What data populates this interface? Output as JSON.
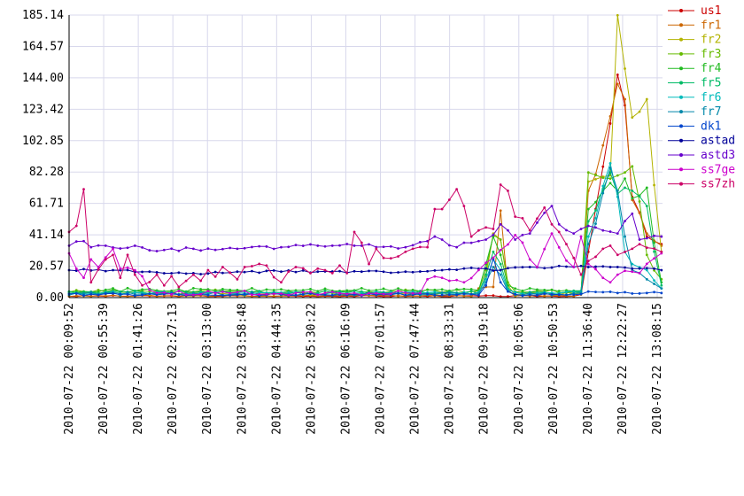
{
  "chart_data": {
    "type": "line",
    "title": "",
    "xlabel": "",
    "ylabel": "",
    "ylim": [
      0.0,
      185.14
    ],
    "yticks": [
      "0.00",
      "20.57",
      "41.14",
      "61.71",
      "82.28",
      "102.85",
      "123.42",
      "144.00",
      "164.57",
      "185.14"
    ],
    "xticks": [
      "2010-07-22 00:09:52",
      "2010-07-22 00:55:39",
      "2010-07-22 01:41:26",
      "2010-07-22 02:27:13",
      "2010-07-22 03:13:00",
      "2010-07-22 03:58:48",
      "2010-07-22 04:44:35",
      "2010-07-22 05:30:22",
      "2010-07-22 06:16:09",
      "2010-07-22 07:01:57",
      "2010-07-22 07:47:44",
      "2010-07-22 08:33:31",
      "2010-07-22 09:19:18",
      "2010-07-22 10:05:06",
      "2010-07-22 10:50:53",
      "2010-07-22 11:36:40",
      "2010-07-22 12:22:27",
      "2010-07-22 13:08:15"
    ],
    "grid": true,
    "legend_position": "right",
    "series": [
      {
        "name": "us1",
        "color": "#cc0000",
        "baseline": 1,
        "noise": 0.4,
        "spikes": [
          [
            24.5,
            2
          ],
          [
            26.3,
            146
          ],
          [
            26.7,
            126
          ],
          [
            27.1,
            66
          ],
          [
            27.6,
            40
          ],
          [
            28.3,
            35
          ]
        ]
      },
      {
        "name": "fr1",
        "color": "#cc6600",
        "baseline": 1.2,
        "noise": 0.4,
        "spikes": [
          [
            19.5,
            6
          ],
          [
            20.2,
            7
          ],
          [
            20.7,
            57
          ],
          [
            21.1,
            5
          ],
          [
            24.5,
            3
          ],
          [
            25.0,
            70
          ],
          [
            26.3,
            140
          ],
          [
            26.7,
            130
          ],
          [
            27.1,
            64
          ],
          [
            27.6,
            42
          ],
          [
            28.3,
            34
          ]
        ]
      },
      {
        "name": "fr2",
        "color": "#b3b300",
        "baseline": 2.5,
        "noise": 1,
        "spikes": [
          [
            20.0,
            14
          ],
          [
            20.4,
            42
          ],
          [
            20.7,
            38
          ],
          [
            21.1,
            8
          ],
          [
            25.0,
            76
          ],
          [
            25.8,
            80
          ],
          [
            26.3,
            185
          ],
          [
            26.7,
            150
          ],
          [
            27.1,
            118
          ],
          [
            27.6,
            130
          ],
          [
            28.3,
            30
          ]
        ]
      },
      {
        "name": "fr3",
        "color": "#66bb00",
        "baseline": 4,
        "noise": 1.2,
        "spikes": [
          [
            20.0,
            18
          ],
          [
            20.4,
            41
          ],
          [
            20.7,
            38
          ],
          [
            21.1,
            10
          ],
          [
            25.0,
            82
          ],
          [
            25.8,
            78
          ],
          [
            26.3,
            80
          ],
          [
            26.7,
            82
          ],
          [
            27.1,
            86
          ],
          [
            27.6,
            28
          ],
          [
            28.3,
            12
          ]
        ]
      },
      {
        "name": "fr4",
        "color": "#22bb22",
        "baseline": 5,
        "noise": 1.2,
        "spikes": [
          [
            20.0,
            22
          ],
          [
            20.4,
            40
          ],
          [
            20.7,
            28
          ],
          [
            21.1,
            8
          ],
          [
            25.0,
            58
          ],
          [
            25.8,
            75
          ],
          [
            26.3,
            70
          ],
          [
            26.7,
            78
          ],
          [
            27.1,
            65
          ],
          [
            27.6,
            72
          ],
          [
            28.3,
            10
          ]
        ]
      },
      {
        "name": "fr5",
        "color": "#00bb66",
        "baseline": 3.5,
        "noise": 1,
        "spikes": [
          [
            20.0,
            15
          ],
          [
            20.4,
            30
          ],
          [
            20.7,
            22
          ],
          [
            21.1,
            6
          ],
          [
            25.0,
            50
          ],
          [
            25.8,
            82
          ],
          [
            26.3,
            68
          ],
          [
            26.7,
            72
          ],
          [
            27.1,
            70
          ],
          [
            27.6,
            60
          ],
          [
            28.3,
            8
          ]
        ]
      },
      {
        "name": "fr6",
        "color": "#00bbbb",
        "baseline": 3,
        "noise": 1,
        "spikes": [
          [
            20.0,
            12
          ],
          [
            20.4,
            25
          ],
          [
            20.7,
            18
          ],
          [
            21.1,
            5
          ],
          [
            25.0,
            40
          ],
          [
            25.8,
            88
          ],
          [
            26.3,
            66
          ],
          [
            26.7,
            30
          ],
          [
            27.1,
            22
          ],
          [
            27.6,
            18
          ],
          [
            28.3,
            6
          ]
        ]
      },
      {
        "name": "fr7",
        "color": "#0088aa",
        "baseline": 2.5,
        "noise": 1,
        "spikes": [
          [
            20.0,
            10
          ],
          [
            20.4,
            20
          ],
          [
            20.7,
            15
          ],
          [
            21.1,
            4
          ],
          [
            25.0,
            35
          ],
          [
            25.8,
            85
          ],
          [
            26.3,
            70
          ],
          [
            26.7,
            40
          ],
          [
            27.1,
            18
          ],
          [
            27.6,
            12
          ],
          [
            28.3,
            6
          ]
        ]
      },
      {
        "name": "dk1",
        "color": "#0044cc",
        "baseline": 2,
        "noise": 0.8,
        "spikes": [
          [
            20.0,
            8
          ],
          [
            20.4,
            26
          ],
          [
            20.7,
            10
          ],
          [
            21.1,
            4
          ],
          [
            25.0,
            4
          ],
          [
            26.3,
            3
          ],
          [
            27.6,
            3
          ],
          [
            28.3,
            3
          ]
        ]
      },
      {
        "name": "astad",
        "color": "#000099",
        "baseline": 18,
        "noise": 0.8,
        "spikes": [
          [
            0.0,
            18
          ],
          [
            2.0,
            18
          ],
          [
            4.0,
            17
          ],
          [
            6.0,
            16
          ],
          [
            8.0,
            17
          ],
          [
            10.0,
            17
          ],
          [
            12.0,
            17
          ],
          [
            14.0,
            17
          ],
          [
            16.0,
            17
          ],
          [
            18.0,
            18
          ],
          [
            19.5,
            19
          ],
          [
            20.5,
            18
          ],
          [
            22.0,
            20
          ],
          [
            24.0,
            20
          ],
          [
            25.0,
            20
          ],
          [
            26.0,
            20
          ],
          [
            27.0,
            19
          ],
          [
            28.3,
            18
          ]
        ]
      },
      {
        "name": "astd3",
        "color": "#6600cc",
        "baseline": 33,
        "noise": 1.2,
        "spikes": [
          [
            0.0,
            34
          ],
          [
            0.6,
            37
          ],
          [
            1.0,
            33
          ],
          [
            4.0,
            31
          ],
          [
            6.0,
            32
          ],
          [
            8.0,
            32
          ],
          [
            10.0,
            33
          ],
          [
            12.0,
            34
          ],
          [
            14.0,
            34
          ],
          [
            16.0,
            33
          ],
          [
            17.6,
            40
          ],
          [
            18.5,
            33
          ],
          [
            19.0,
            36
          ],
          [
            20.0,
            38
          ],
          [
            20.7,
            48
          ],
          [
            21.4,
            38
          ],
          [
            22.0,
            42
          ],
          [
            23.0,
            60
          ],
          [
            23.5,
            48
          ],
          [
            24.0,
            42
          ],
          [
            24.5,
            45
          ],
          [
            25.0,
            47
          ],
          [
            25.6,
            44
          ],
          [
            26.3,
            42
          ],
          [
            26.8,
            55
          ],
          [
            27.2,
            38
          ],
          [
            28.3,
            40
          ]
        ]
      },
      {
        "name": "ss7ge",
        "color": "#cc00cc",
        "baseline": 3,
        "noise": 1.5,
        "spikes": [
          [
            0.0,
            29
          ],
          [
            0.3,
            19
          ],
          [
            0.6,
            13
          ],
          [
            1.0,
            25
          ],
          [
            1.5,
            20
          ],
          [
            2.0,
            32
          ],
          [
            2.5,
            19
          ],
          [
            3.0,
            18
          ],
          [
            3.5,
            14
          ],
          [
            4.0,
            5
          ],
          [
            17.0,
            12
          ],
          [
            18.0,
            13
          ],
          [
            19.0,
            10
          ],
          [
            21.5,
            41
          ],
          [
            22.0,
            25
          ],
          [
            22.5,
            20
          ],
          [
            23.0,
            42
          ],
          [
            24.0,
            20
          ],
          [
            24.5,
            40
          ],
          [
            25.0,
            22
          ],
          [
            25.8,
            10
          ],
          [
            26.3,
            15
          ],
          [
            26.8,
            17
          ],
          [
            27.2,
            16
          ],
          [
            28.3,
            29
          ]
        ]
      },
      {
        "name": "ss7zh",
        "color": "#cc0066",
        "baseline": 5,
        "noise": 1.5,
        "spikes": [
          [
            0.0,
            43
          ],
          [
            0.3,
            47
          ],
          [
            0.6,
            71
          ],
          [
            0.9,
            35
          ],
          [
            1.2,
            10
          ],
          [
            1.6,
            25
          ],
          [
            2.0,
            28
          ],
          [
            2.3,
            28
          ],
          [
            2.6,
            13
          ],
          [
            2.9,
            28
          ],
          [
            3.3,
            15
          ],
          [
            3.6,
            8
          ],
          [
            4.2,
            15
          ],
          [
            4.6,
            8
          ],
          [
            5.0,
            14
          ],
          [
            5.4,
            7
          ],
          [
            5.8,
            15
          ],
          [
            6.3,
            11
          ],
          [
            6.7,
            18
          ],
          [
            7.2,
            12
          ],
          [
            7.5,
            20
          ],
          [
            8.0,
            12
          ],
          [
            8.4,
            20
          ],
          [
            9.5,
            21
          ],
          [
            10.0,
            10
          ],
          [
            10.5,
            17
          ],
          [
            11.0,
            20
          ],
          [
            11.5,
            16
          ],
          [
            12.0,
            19
          ],
          [
            12.5,
            16
          ],
          [
            13.0,
            21
          ],
          [
            13.3,
            16
          ],
          [
            13.6,
            43
          ],
          [
            14.0,
            36
          ],
          [
            14.4,
            22
          ],
          [
            14.8,
            32
          ],
          [
            15.2,
            26
          ],
          [
            15.6,
            27
          ],
          [
            16.0,
            30
          ],
          [
            16.6,
            32
          ],
          [
            17.0,
            33
          ],
          [
            17.6,
            58
          ],
          [
            18.0,
            58
          ],
          [
            18.4,
            71
          ],
          [
            18.8,
            60
          ],
          [
            19.2,
            40
          ],
          [
            19.6,
            44
          ],
          [
            20.0,
            46
          ],
          [
            20.4,
            45
          ],
          [
            20.7,
            74
          ],
          [
            21.0,
            70
          ],
          [
            21.4,
            53
          ],
          [
            21.8,
            52
          ],
          [
            22.2,
            44
          ],
          [
            22.6,
            59
          ],
          [
            23.0,
            48
          ],
          [
            23.4,
            43
          ],
          [
            23.8,
            35
          ],
          [
            24.2,
            26
          ],
          [
            24.6,
            15
          ],
          [
            25.0,
            24
          ],
          [
            25.4,
            32
          ],
          [
            25.8,
            34
          ],
          [
            26.3,
            28
          ],
          [
            26.8,
            32
          ],
          [
            27.2,
            35
          ],
          [
            28.3,
            30
          ]
        ]
      }
    ]
  }
}
